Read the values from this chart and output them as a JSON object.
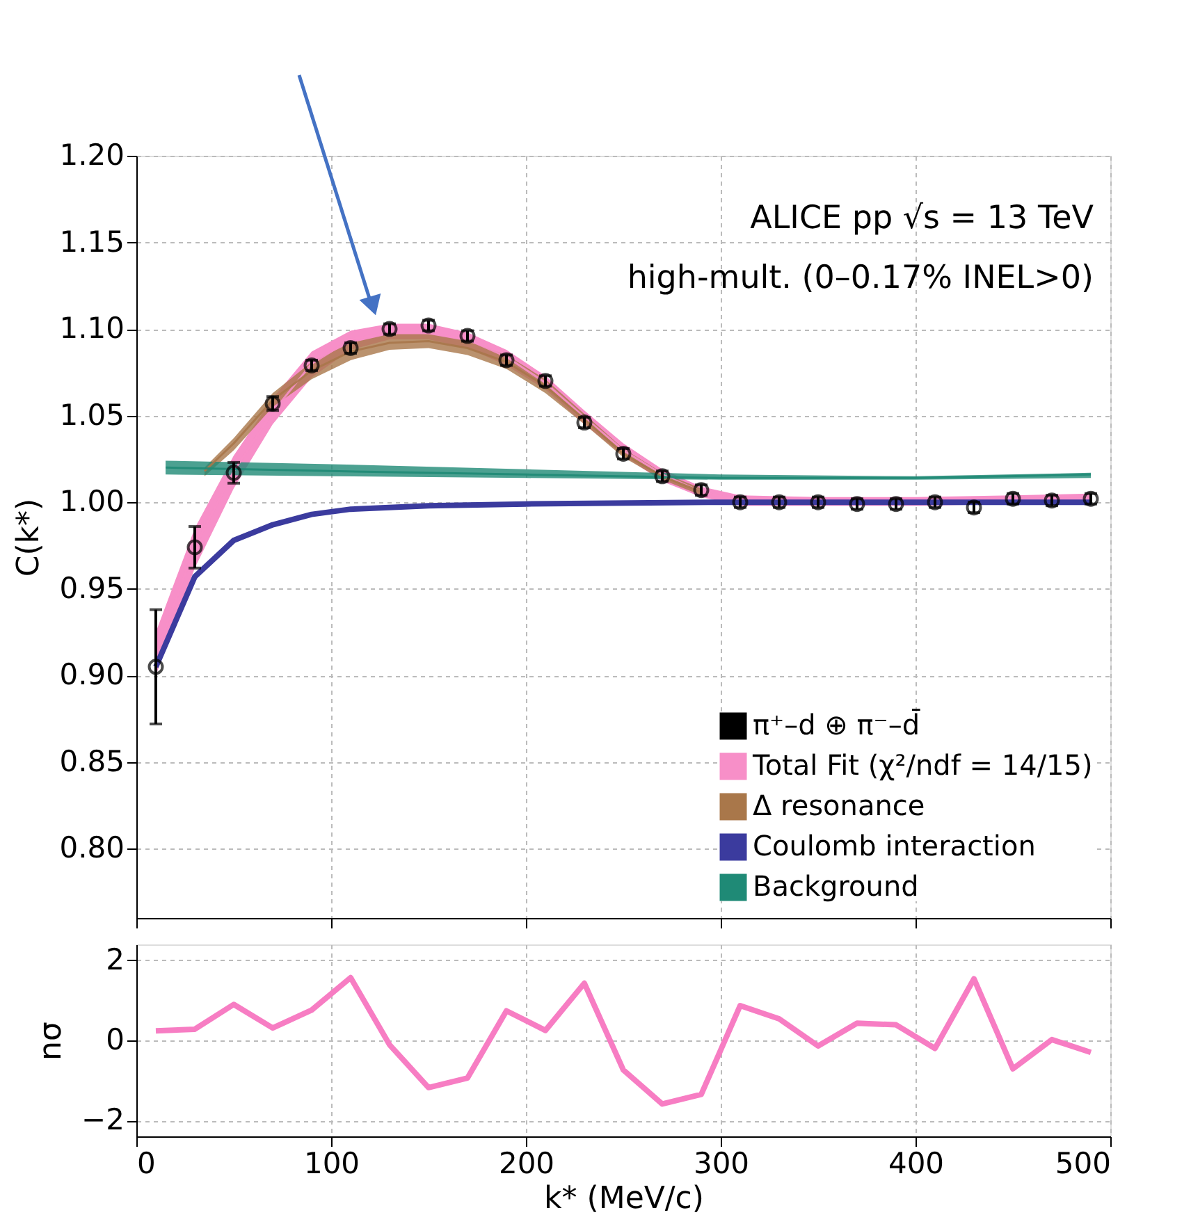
{
  "chart_data": [
    {
      "type": "scatter",
      "ylabel": "C(k*)",
      "xlim": [
        0,
        500
      ],
      "ylim": [
        0.76,
        1.2
      ],
      "xticks": [
        0,
        100,
        200,
        300,
        400,
        500
      ],
      "yticks": [
        {
          "value": 0.8,
          "label": "0.80"
        },
        {
          "value": 0.85,
          "label": "0.85"
        },
        {
          "value": 0.9,
          "label": "0.90"
        },
        {
          "value": 0.95,
          "label": "0.95"
        },
        {
          "value": 1.0,
          "label": "1.00"
        },
        {
          "value": 1.05,
          "label": "1.05"
        },
        {
          "value": 1.1,
          "label": "1.10"
        },
        {
          "value": 1.15,
          "label": "1.15"
        },
        {
          "value": 1.2,
          "label": "1.20"
        }
      ],
      "tick_labels": "y",
      "grid": true,
      "legend": "bottom right",
      "annotations": [
        "ALICE pp √s = 13 TeV",
        "high-mult. (0–0.17% INEL>0)"
      ],
      "series": [
        {
          "name": "π⁺–d ⊕ π⁻–d̄",
          "type": "scatter",
          "marker": "circle",
          "color": "#000000",
          "x": [
            10,
            30,
            50,
            70,
            90,
            110,
            130,
            150,
            170,
            190,
            210,
            230,
            250,
            270,
            290,
            310,
            330,
            350,
            370,
            390,
            410,
            430,
            450,
            470,
            490
          ],
          "values": [
            0.905,
            0.974,
            1.017,
            1.057,
            1.079,
            1.089,
            1.1,
            1.102,
            1.096,
            1.082,
            1.07,
            1.046,
            1.028,
            1.015,
            1.007,
            1.0,
            1.0,
            1.0,
            0.999,
            0.999,
            1.0,
            0.997,
            1.002,
            1.001,
            1.002
          ],
          "errors": [
            0.033,
            0.012,
            0.006,
            0.004,
            0.003,
            0.003,
            0.003,
            0.003,
            0.003,
            0.003,
            0.003,
            0.003,
            0.003,
            0.003,
            0.003,
            0.003,
            0.003,
            0.003,
            0.003,
            0.003,
            0.003,
            0.003,
            0.003,
            0.003,
            0.003
          ]
        },
        {
          "name": "Total Fit (χ²/ndf = 14/15)",
          "type": "line",
          "color": "#f78fc8",
          "x": [
            10,
            30,
            50,
            70,
            90,
            110,
            130,
            150,
            170,
            190,
            210,
            230,
            250,
            270,
            290,
            310,
            350,
            400,
            450,
            490
          ],
          "values": [
            0.912,
            0.974,
            1.018,
            1.052,
            1.08,
            1.094,
            1.098,
            1.098,
            1.094,
            1.084,
            1.069,
            1.049,
            1.03,
            1.016,
            1.006,
            1.001,
            1.0,
            1.0,
            1.002,
            1.002
          ],
          "upper": [
            0.925,
            0.985,
            1.027,
            1.06,
            1.087,
            1.099,
            1.103,
            1.103,
            1.098,
            1.088,
            1.073,
            1.053,
            1.034,
            1.019,
            1.009,
            1.004,
            1.003,
            1.003,
            1.004,
            1.005
          ],
          "lower": [
            0.9,
            0.962,
            1.008,
            1.045,
            1.072,
            1.088,
            1.094,
            1.094,
            1.089,
            1.079,
            1.065,
            1.045,
            1.027,
            1.012,
            1.003,
            0.998,
            0.998,
            0.998,
            0.999,
            1.0
          ]
        },
        {
          "name": "Δ resonance",
          "type": "line",
          "color": "#a9774a",
          "x": [
            35,
            50,
            70,
            90,
            110,
            130,
            150,
            170,
            190,
            210,
            230,
            250,
            270,
            290
          ],
          "values": [
            1.018,
            1.034,
            1.059,
            1.076,
            1.087,
            1.092,
            1.093,
            1.089,
            1.081,
            1.067,
            1.048,
            1.028,
            1.015,
            1.006
          ],
          "upper": [
            1.02,
            1.037,
            1.063,
            1.081,
            1.092,
            1.097,
            1.097,
            1.093,
            1.085,
            1.071,
            1.051,
            1.031,
            1.017,
            1.008
          ],
          "lower": [
            1.015,
            1.03,
            1.055,
            1.071,
            1.082,
            1.088,
            1.089,
            1.085,
            1.077,
            1.063,
            1.045,
            1.026,
            1.013,
            1.004
          ]
        },
        {
          "name": "Coulomb interaction",
          "type": "line",
          "color": "#3b3b9e",
          "x": [
            10,
            30,
            50,
            70,
            90,
            110,
            150,
            200,
            300,
            490
          ],
          "values": [
            0.905,
            0.957,
            0.978,
            0.987,
            0.993,
            0.996,
            0.998,
            0.999,
            1.0,
            1.0
          ]
        },
        {
          "name": "Background",
          "type": "line",
          "color": "#1f8a76",
          "x": [
            15,
            100,
            200,
            300,
            400,
            490
          ],
          "values": [
            1.02,
            1.018,
            1.016,
            1.014,
            1.014,
            1.016
          ],
          "upper": [
            1.024,
            1.022,
            1.019,
            1.016,
            1.015,
            1.017
          ],
          "lower": [
            1.016,
            1.015,
            1.014,
            1.013,
            1.013,
            1.014
          ]
        }
      ]
    },
    {
      "type": "line",
      "xlabel": "k* (MeV/c)",
      "ylabel": "nσ",
      "xlim": [
        0,
        500
      ],
      "ylim": [
        -2.4,
        2.4
      ],
      "xticks": [
        0,
        100,
        200,
        300,
        400,
        500
      ],
      "yticks": [
        {
          "value": -2,
          "label": "−2"
        },
        0,
        2
      ],
      "grid": true,
      "line_style": "solid",
      "series": [
        {
          "color": "#f77dc3",
          "x": [
            10,
            30,
            50,
            70,
            90,
            110,
            130,
            150,
            170,
            190,
            210,
            230,
            250,
            270,
            290,
            310,
            330,
            350,
            370,
            390,
            410,
            430,
            450,
            470,
            490
          ],
          "values": [
            0.24,
            0.28,
            0.9,
            0.31,
            0.76,
            1.57,
            -0.11,
            -1.18,
            -0.94,
            0.74,
            0.25,
            1.43,
            -0.74,
            -1.59,
            -1.35,
            0.87,
            0.54,
            -0.14,
            0.43,
            0.39,
            -0.2,
            1.54,
            -0.71,
            0.02,
            -0.3
          ]
        }
      ]
    }
  ]
}
